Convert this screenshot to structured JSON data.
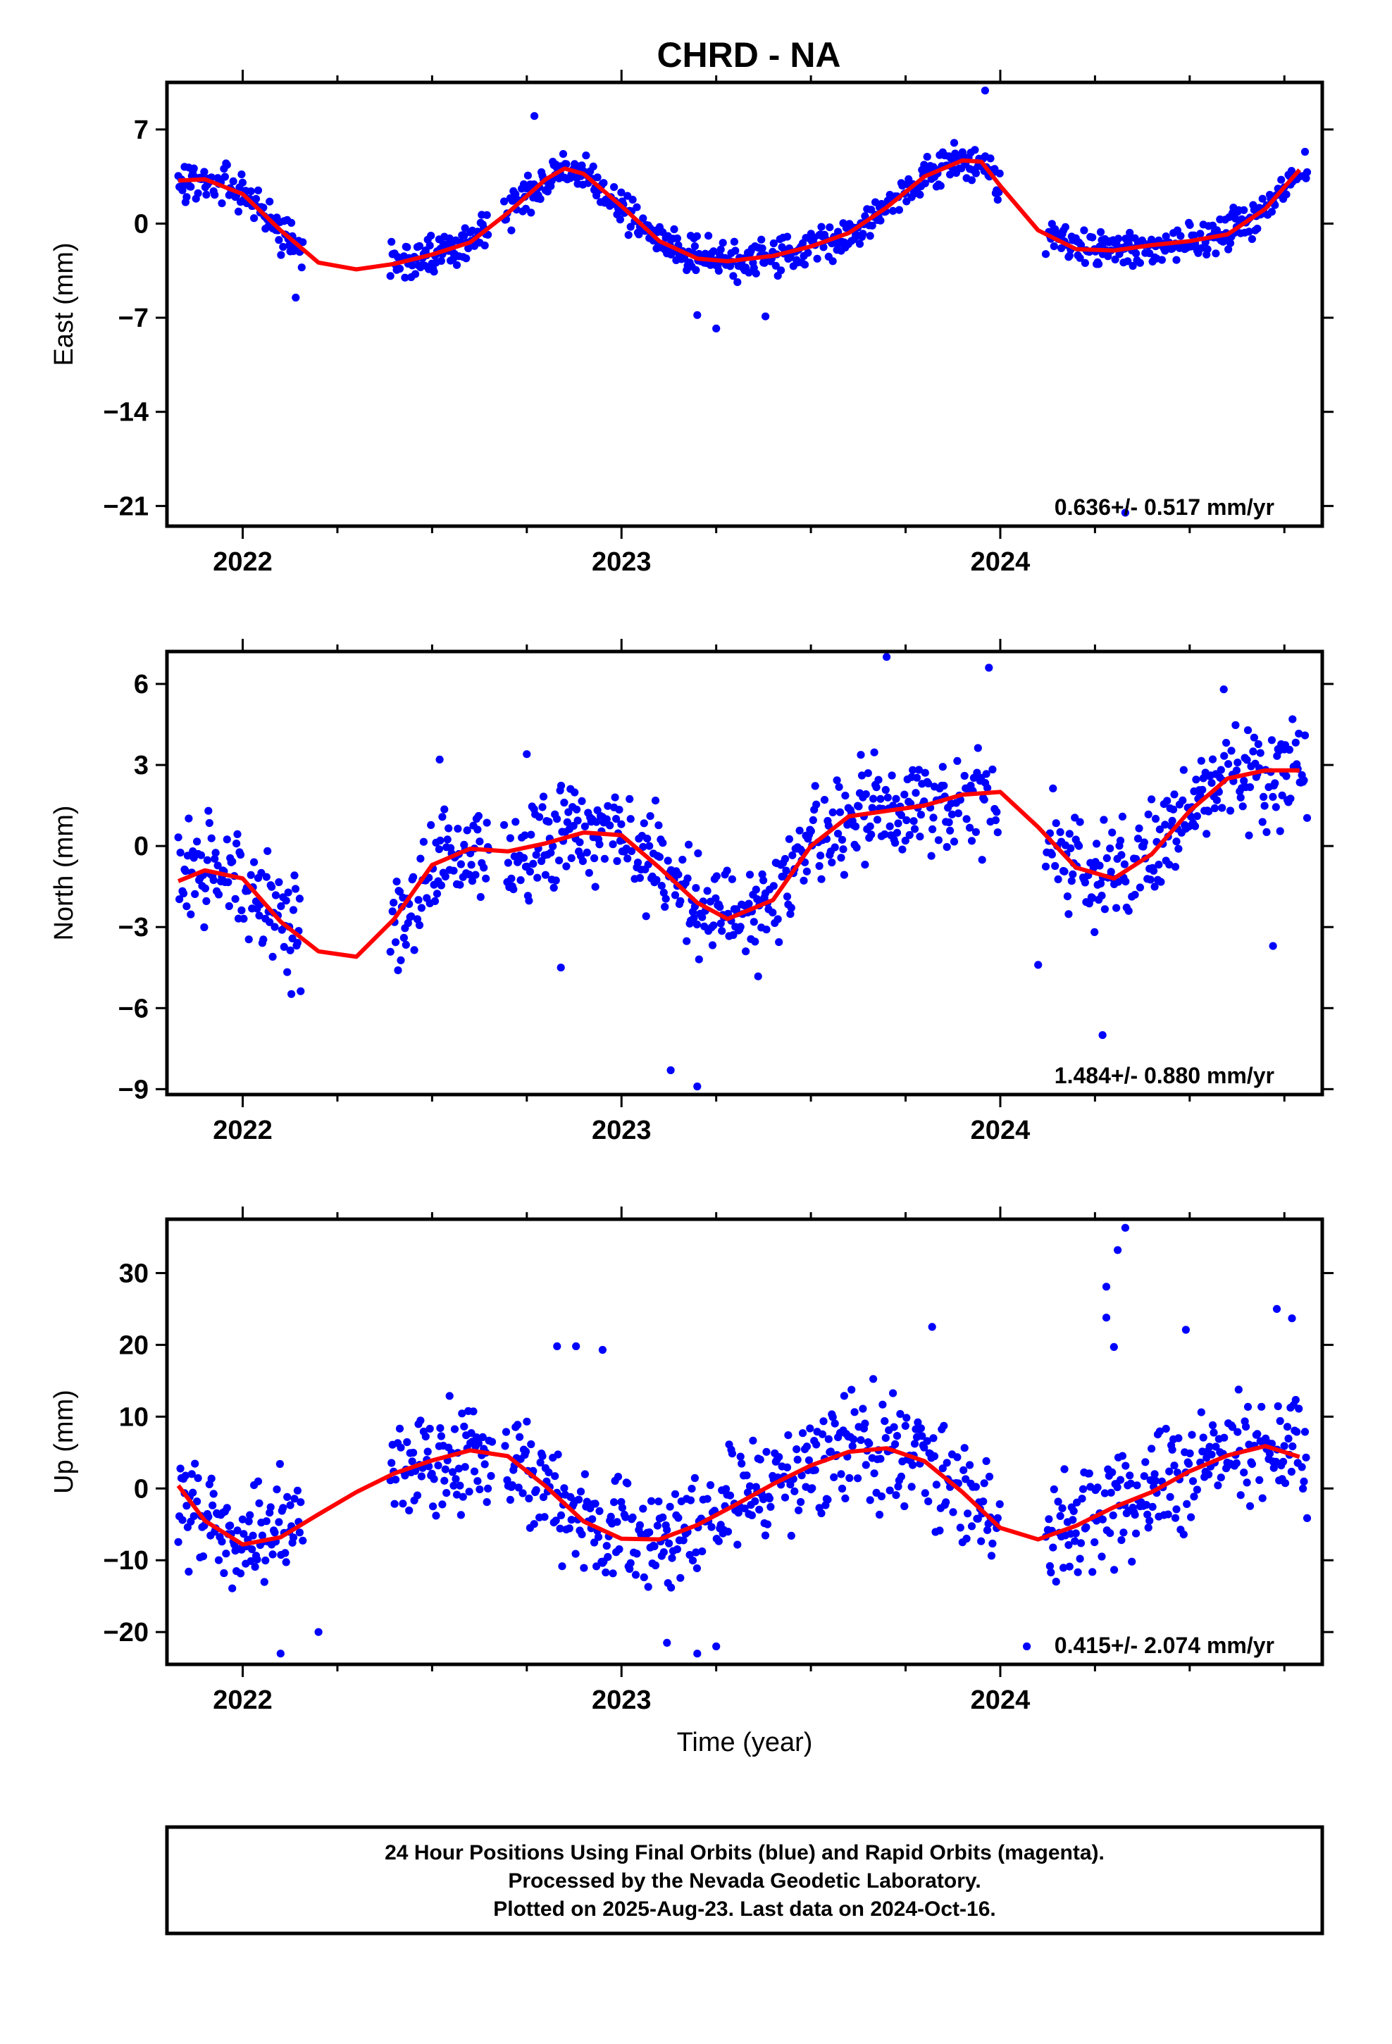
{
  "title": "CHRD - NA",
  "colors": {
    "final_orbit_points": "#0000ff",
    "trend_line": "#ff0000",
    "frame": "#000000"
  },
  "footer": {
    "line1": "24 Hour Positions Using Final Orbits (blue) and Rapid Orbits (magenta).",
    "line2": "Processed by the Nevada Geodetic Laboratory.",
    "line3": "Plotted on 2025-Aug-23. Last data on 2024-Oct-16."
  },
  "chart_data": [
    {
      "type": "scatter",
      "id": "east",
      "ylabel": "East (mm)",
      "xlabel": "",
      "rate_text": "0.636+/- 0.517 mm/yr",
      "xlim": [
        2021.8,
        2024.85
      ],
      "ylim": [
        -22.5,
        10.5
      ],
      "xticks": [
        2022,
        2023,
        2024
      ],
      "xtick_labels": [
        "2022",
        "2023",
        "2024"
      ],
      "yticks": [
        7,
        0,
        -7,
        -14,
        -21
      ],
      "ytick_labels": [
        "7",
        "0",
        "−7",
        "−14",
        "−21"
      ],
      "trend": {
        "x": [
          2021.83,
          2021.9,
          2022.0,
          2022.1,
          2022.2,
          2022.3,
          2022.4,
          2022.5,
          2022.6,
          2022.7,
          2022.8,
          2022.85,
          2022.9,
          2023.0,
          2023.1,
          2023.2,
          2023.28,
          2023.4,
          2023.5,
          2023.6,
          2023.7,
          2023.8,
          2023.9,
          2023.95,
          2024.0,
          2024.1,
          2024.2,
          2024.3,
          2024.4,
          2024.5,
          2024.6,
          2024.7,
          2024.79
        ],
        "y": [
          3.2,
          3.3,
          2.2,
          -0.5,
          -2.9,
          -3.4,
          -3.0,
          -2.3,
          -1.4,
          0.8,
          3.3,
          4.1,
          3.7,
          1.3,
          -1.3,
          -2.6,
          -2.8,
          -2.4,
          -1.7,
          -0.7,
          1.2,
          3.5,
          4.7,
          4.6,
          2.8,
          -0.5,
          -1.9,
          -2.0,
          -1.6,
          -1.3,
          -0.8,
          1.1,
          4.0
        ]
      },
      "points_summary": {
        "segments": [
          [
            2021.83,
            2022.16
          ],
          [
            2022.39,
            2022.65
          ],
          [
            2022.69,
            2024.0
          ],
          [
            2024.12,
            2024.81
          ]
        ],
        "seed": 17,
        "noise": 0.95,
        "outliers": [
          [
            2023.25,
            -7.8
          ],
          [
            2023.38,
            -6.9
          ],
          [
            2022.77,
            8.0
          ],
          [
            2023.96,
            9.9
          ],
          [
            2024.33,
            -21.5
          ],
          [
            2022.14,
            -5.5
          ],
          [
            2023.2,
            -6.8
          ]
        ]
      }
    },
    {
      "type": "scatter",
      "id": "north",
      "ylabel": "North (mm)",
      "xlabel": "",
      "rate_text": "1.484+/- 0.880 mm/yr",
      "xlim": [
        2021.8,
        2024.85
      ],
      "ylim": [
        -9.2,
        7.2
      ],
      "xticks": [
        2022,
        2023,
        2024
      ],
      "xtick_labels": [
        "2022",
        "2023",
        "2024"
      ],
      "yticks": [
        6,
        3,
        0,
        -3,
        -6,
        -9
      ],
      "ytick_labels": [
        "6",
        "3",
        "0",
        "−3",
        "−6",
        "−9"
      ],
      "trend": {
        "x": [
          2021.83,
          2021.9,
          2022.0,
          2022.1,
          2022.2,
          2022.3,
          2022.4,
          2022.5,
          2022.6,
          2022.7,
          2022.8,
          2022.9,
          2023.0,
          2023.1,
          2023.2,
          2023.28,
          2023.4,
          2023.5,
          2023.6,
          2023.7,
          2023.8,
          2023.9,
          2024.0,
          2024.1,
          2024.2,
          2024.3,
          2024.4,
          2024.5,
          2024.6,
          2024.7,
          2024.79
        ],
        "y": [
          -1.3,
          -0.9,
          -1.2,
          -2.8,
          -3.9,
          -4.1,
          -2.7,
          -0.7,
          -0.1,
          -0.2,
          0.1,
          0.5,
          0.4,
          -0.8,
          -2.1,
          -2.7,
          -2.0,
          0.0,
          1.1,
          1.3,
          1.5,
          1.9,
          2.0,
          0.7,
          -0.8,
          -1.2,
          -0.3,
          1.3,
          2.5,
          2.8,
          2.8
        ]
      },
      "points_summary": {
        "segments": [
          [
            2021.83,
            2022.16
          ],
          [
            2022.39,
            2022.66
          ],
          [
            2022.69,
            2024.0
          ],
          [
            2024.12,
            2024.81
          ]
        ],
        "seed": 29,
        "noise": 1.25,
        "outliers": [
          [
            2023.2,
            -8.9
          ],
          [
            2023.13,
            -8.3
          ],
          [
            2023.7,
            7.0
          ],
          [
            2023.97,
            6.6
          ],
          [
            2024.27,
            -7.0
          ],
          [
            2024.1,
            -4.4
          ],
          [
            2024.72,
            -3.7
          ],
          [
            2022.84,
            -4.5
          ],
          [
            2022.41,
            -4.6
          ],
          [
            2022.75,
            3.4
          ],
          [
            2022.52,
            3.2
          ],
          [
            2024.59,
            5.8
          ]
        ]
      }
    },
    {
      "type": "scatter",
      "id": "up",
      "ylabel": "Up (mm)",
      "xlabel": "Time (year)",
      "rate_text": "0.415+/- 2.074 mm/yr",
      "xlim": [
        2021.8,
        2024.85
      ],
      "ylim": [
        -24.5,
        37.5
      ],
      "xticks": [
        2022,
        2023,
        2024
      ],
      "xtick_labels": [
        "2022",
        "2023",
        "2024"
      ],
      "yticks": [
        30,
        20,
        10,
        0,
        -10,
        -20
      ],
      "ytick_labels": [
        "30",
        "20",
        "10",
        "0",
        "−10",
        "−20"
      ],
      "trend": {
        "x": [
          2021.83,
          2021.9,
          2022.0,
          2022.1,
          2022.2,
          2022.3,
          2022.4,
          2022.5,
          2022.6,
          2022.7,
          2022.8,
          2022.9,
          2023.0,
          2023.1,
          2023.2,
          2023.3,
          2023.4,
          2023.5,
          2023.6,
          2023.7,
          2023.8,
          2023.9,
          2024.0,
          2024.1,
          2024.2,
          2024.3,
          2024.4,
          2024.5,
          2024.6,
          2024.7,
          2024.79
        ],
        "y": [
          0.4,
          -4.5,
          -7.8,
          -6.8,
          -3.6,
          -0.5,
          2.1,
          3.9,
          5.3,
          4.5,
          0.3,
          -4.6,
          -7.0,
          -7.1,
          -5.1,
          -2.3,
          0.6,
          3.2,
          5.1,
          5.6,
          3.8,
          -0.5,
          -5.5,
          -7.1,
          -5.2,
          -2.6,
          -0.5,
          2.4,
          4.6,
          5.9,
          4.4
        ]
      },
      "points_summary": {
        "segments": [
          [
            2021.83,
            2022.16
          ],
          [
            2022.39,
            2022.66
          ],
          [
            2022.69,
            2024.0
          ],
          [
            2024.12,
            2024.81
          ]
        ],
        "seed": 43,
        "noise": 5.0,
        "outliers": [
          [
            2024.33,
            36.3
          ],
          [
            2024.31,
            33.2
          ],
          [
            2024.28,
            28.1
          ],
          [
            2024.28,
            23.8
          ],
          [
            2022.88,
            19.8
          ],
          [
            2022.83,
            19.8
          ],
          [
            2022.95,
            19.3
          ],
          [
            2023.82,
            22.5
          ],
          [
            2024.49,
            22.1
          ],
          [
            2024.77,
            23.7
          ],
          [
            2024.73,
            25.0
          ],
          [
            2024.3,
            19.7
          ],
          [
            2022.1,
            -23.0
          ],
          [
            2023.2,
            -23.0
          ],
          [
            2023.12,
            -21.5
          ],
          [
            2023.25,
            -22.0
          ],
          [
            2022.2,
            -20.0
          ],
          [
            2024.07,
            -22.0
          ]
        ]
      }
    }
  ]
}
